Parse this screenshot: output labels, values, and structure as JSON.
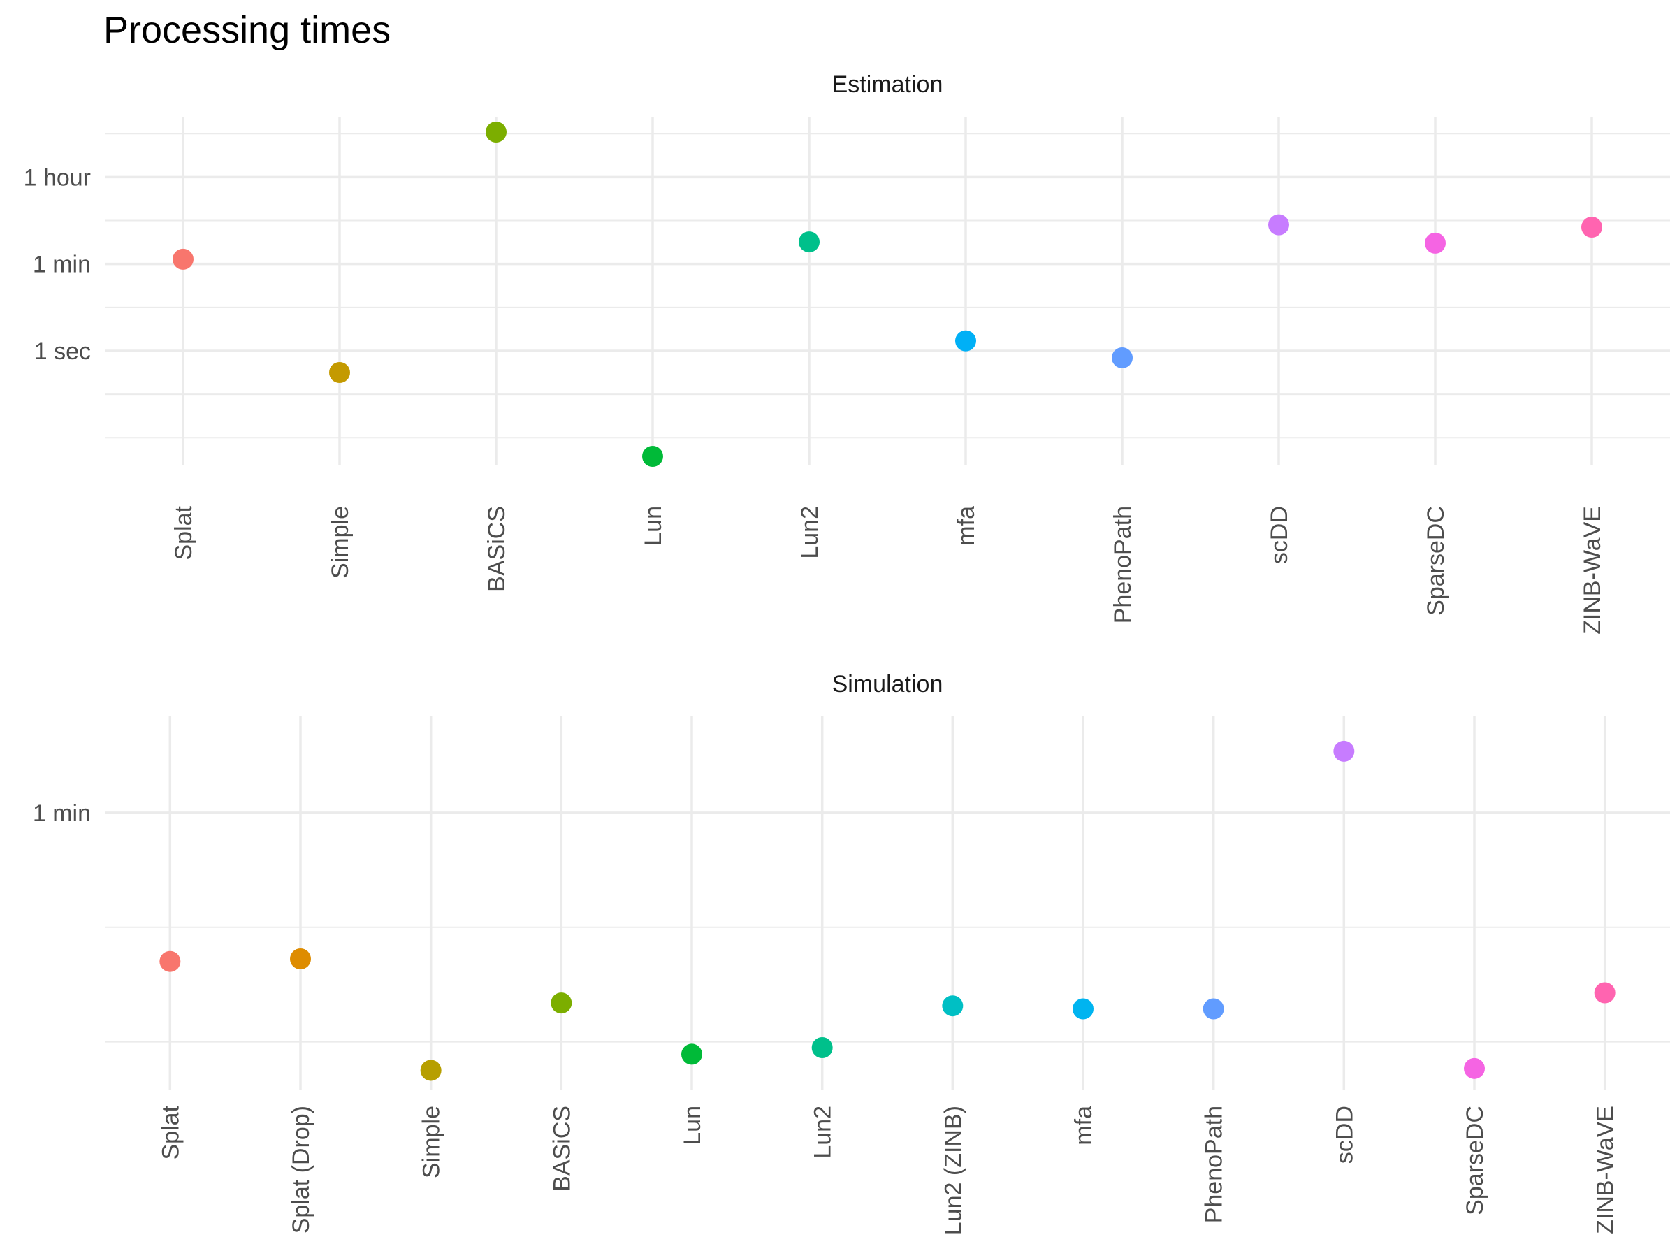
{
  "title": "Processing times",
  "chart_data": [
    {
      "type": "scatter",
      "panel": "Estimation",
      "y_scale": "log",
      "y_unit": "seconds",
      "y_tick_labels": [
        {
          "label": "1 sec",
          "value": 1
        },
        {
          "label": "1 min",
          "value": 60
        },
        {
          "label": "1 hour",
          "value": 3600
        }
      ],
      "ylim": [
        0.0045,
        60000
      ],
      "grid": true,
      "categories": [
        "Splat",
        "Simple",
        "BASiCS",
        "Lun",
        "Lun2",
        "mfa",
        "PhenoPath",
        "scDD",
        "SparseDC",
        "ZINB-WaVE"
      ],
      "values": [
        75,
        0.36,
        30000,
        0.0069,
        170,
        1.6,
        0.72,
        380,
        160,
        340
      ],
      "colors": [
        "#F8766D",
        "#C49A00",
        "#7CAE00",
        "#00BA38",
        "#00C08B",
        "#00B0F6",
        "#619CFF",
        "#C77CFF",
        "#F564E3",
        "#FF64B0"
      ]
    },
    {
      "type": "scatter",
      "panel": "Simulation",
      "y_scale": "log",
      "y_unit": "seconds",
      "y_tick_labels": [
        {
          "label": "1 min",
          "value": 60
        }
      ],
      "ylim": [
        0.42,
        340
      ],
      "grid": true,
      "categories": [
        "Splat",
        "Splat (Drop)",
        "Simple",
        "BASiCS",
        "Lun",
        "Lun2",
        "Lun2 (ZINB)",
        "mfa",
        "PhenoPath",
        "scDD",
        "SparseDC",
        "ZINB-WaVE"
      ],
      "values": [
        4.2,
        4.4,
        0.6,
        2.0,
        0.8,
        0.9,
        1.9,
        1.8,
        1.8,
        180,
        0.62,
        2.4
      ],
      "colors": [
        "#F8766D",
        "#DE8C00",
        "#B79F00",
        "#7CAE00",
        "#00BA38",
        "#00C08B",
        "#00BFC4",
        "#00B4F0",
        "#619CFF",
        "#C77CFF",
        "#F564E3",
        "#FF64B0"
      ]
    }
  ]
}
